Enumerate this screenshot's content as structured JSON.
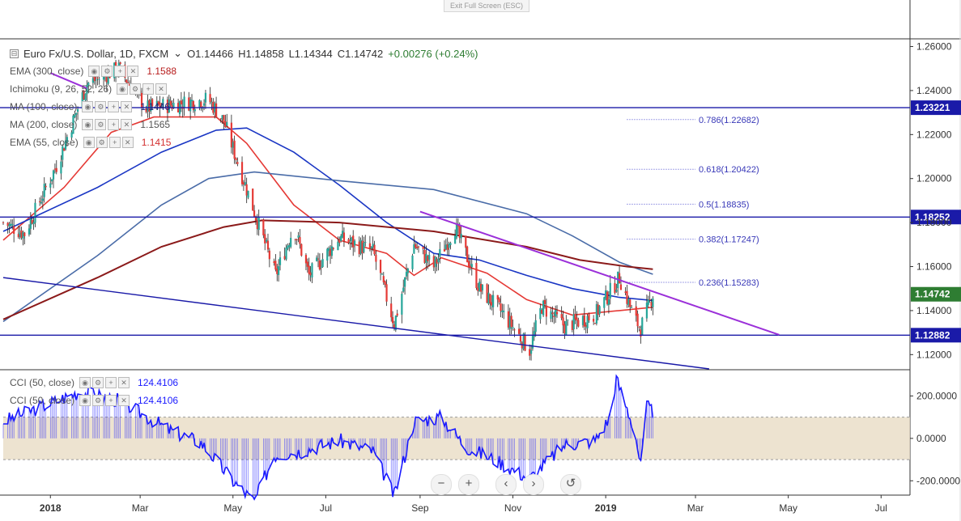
{
  "ui": {
    "exit_label": "Exit Full Screen (ESC)",
    "collapse_glyph": "⊟",
    "controls": {
      "zoom_out": "−",
      "zoom_in": "+",
      "prev": "‹",
      "next": "›",
      "reset": "↺"
    }
  },
  "header": {
    "symbol": "Euro Fx/U.S. Dollar, 1D, FXCM",
    "open": "O1.14466",
    "high": "H1.14858",
    "low": "L1.14344",
    "close": "C1.14742",
    "change": "+0.00276 (+0.24%)"
  },
  "indicators": [
    {
      "label": "EMA (300, close)",
      "value": "1.1588",
      "color": "#b71c1c"
    },
    {
      "label": "Ichimoku (9, 26, 52, 26)",
      "value": "",
      "color": "#555555"
    },
    {
      "label": "MA (100, close)",
      "value": "1.1446",
      "color": "#1a237e"
    },
    {
      "label": "MA (200, close)",
      "value": "1.1565",
      "color": "#555555"
    },
    {
      "label": "EMA (55, close)",
      "value": "1.1415",
      "color": "#d32f2f"
    }
  ],
  "cci_legend": [
    {
      "label": "CCI (50, close)",
      "value": "124.4106"
    },
    {
      "label": "CCI (50, close)",
      "value": "124.4106"
    }
  ],
  "colors": {
    "up": "#26a69a",
    "down": "#e53935",
    "cci": "#1a1aff",
    "ema55": "#e53935",
    "ma100": "#1a36c4",
    "ma200": "#4a6ca8",
    "ema300": "#8b1a1a",
    "trend_purple": "#9b30d9",
    "hline": "#1a1aa8",
    "price_tag": "#1a1aa8",
    "last_price_tag": "#2e7d32",
    "cci_band": "#e8dcc4"
  },
  "chart_data": {
    "type": "candlestick",
    "series_name": "Euro Fx/U.S. Dollar",
    "timeframe": "1D",
    "x_ticks": [
      "2018",
      "Mar",
      "May",
      "Jul",
      "Sep",
      "Nov",
      "2019",
      "Mar",
      "May",
      "Jul"
    ],
    "x_range": [
      "2017-12-01",
      "2019-07-20"
    ],
    "ylim": [
      1.1135,
      1.2635
    ],
    "y_ticks": [
      "1.26000",
      "1.24000",
      "1.22000",
      "1.20000",
      "1.18000",
      "1.16000",
      "1.14000",
      "1.12000"
    ],
    "last_price": "1.14742",
    "ohlc_anchors": [
      [
        "2017-12-01",
        1.18
      ],
      [
        "2017-12-15",
        1.175
      ],
      [
        "2018-01-05",
        1.206
      ],
      [
        "2018-01-25",
        1.243
      ],
      [
        "2018-02-15",
        1.25
      ],
      [
        "2018-03-05",
        1.232
      ],
      [
        "2018-04-15",
        1.236
      ],
      [
        "2018-04-25",
        1.226
      ],
      [
        "2018-05-15",
        1.185
      ],
      [
        "2018-05-29",
        1.156
      ],
      [
        "2018-06-10",
        1.178
      ],
      [
        "2018-06-20",
        1.156
      ],
      [
        "2018-07-10",
        1.173
      ],
      [
        "2018-08-01",
        1.167
      ],
      [
        "2018-08-15",
        1.134
      ],
      [
        "2018-08-28",
        1.17
      ],
      [
        "2018-09-10",
        1.16
      ],
      [
        "2018-09-24",
        1.178
      ],
      [
        "2018-10-10",
        1.15
      ],
      [
        "2018-10-25",
        1.139
      ],
      [
        "2018-11-12",
        1.122
      ],
      [
        "2018-11-20",
        1.142
      ],
      [
        "2018-12-05",
        1.133
      ],
      [
        "2018-12-25",
        1.138
      ],
      [
        "2019-01-10",
        1.155
      ],
      [
        "2019-01-20",
        1.136
      ],
      [
        "2019-01-24",
        1.132
      ],
      [
        "2019-02-01",
        1.1474
      ]
    ],
    "moving_averages": [
      {
        "name": "EMA (55, close)",
        "points": [
          [
            "2017-12-01",
            1.172
          ],
          [
            "2018-01-10",
            1.196
          ],
          [
            "2018-02-10",
            1.221
          ],
          [
            "2018-03-10",
            1.228
          ],
          [
            "2018-04-20",
            1.228
          ],
          [
            "2018-05-10",
            1.216
          ],
          [
            "2018-06-10",
            1.188
          ],
          [
            "2018-07-10",
            1.172
          ],
          [
            "2018-08-10",
            1.166
          ],
          [
            "2018-08-28",
            1.156
          ],
          [
            "2018-09-15",
            1.164
          ],
          [
            "2018-10-15",
            1.157
          ],
          [
            "2018-11-10",
            1.145
          ],
          [
            "2018-12-10",
            1.138
          ],
          [
            "2019-01-10",
            1.14
          ],
          [
            "2019-02-01",
            1.1415
          ]
        ]
      },
      {
        "name": "MA (100, close)",
        "points": [
          [
            "2017-12-01",
            1.176
          ],
          [
            "2018-02-01",
            1.196
          ],
          [
            "2018-03-15",
            1.212
          ],
          [
            "2018-04-20",
            1.222
          ],
          [
            "2018-05-10",
            1.223
          ],
          [
            "2018-06-10",
            1.212
          ],
          [
            "2018-07-10",
            1.197
          ],
          [
            "2018-08-10",
            1.18
          ],
          [
            "2018-09-10",
            1.166
          ],
          [
            "2018-10-10",
            1.163
          ],
          [
            "2018-11-10",
            1.156
          ],
          [
            "2018-12-10",
            1.15
          ],
          [
            "2019-01-10",
            1.146
          ],
          [
            "2019-02-01",
            1.1446
          ]
        ]
      },
      {
        "name": "MA (200, close)",
        "points": [
          [
            "2017-12-01",
            1.135
          ],
          [
            "2018-02-01",
            1.165
          ],
          [
            "2018-03-15",
            1.188
          ],
          [
            "2018-04-15",
            1.2
          ],
          [
            "2018-05-15",
            1.203
          ],
          [
            "2018-07-10",
            1.199
          ],
          [
            "2018-09-10",
            1.195
          ],
          [
            "2018-11-10",
            1.184
          ],
          [
            "2018-12-10",
            1.174
          ],
          [
            "2019-01-10",
            1.162
          ],
          [
            "2019-02-01",
            1.1565
          ]
        ]
      },
      {
        "name": "EMA (300, close)",
        "points": [
          [
            "2017-12-01",
            1.136
          ],
          [
            "2018-02-01",
            1.155
          ],
          [
            "2018-03-15",
            1.169
          ],
          [
            "2018-04-25",
            1.178
          ],
          [
            "2018-05-20",
            1.181
          ],
          [
            "2018-07-10",
            1.18
          ],
          [
            "2018-09-10",
            1.176
          ],
          [
            "2018-11-10",
            1.169
          ],
          [
            "2018-12-15",
            1.163
          ],
          [
            "2019-01-15",
            1.16
          ],
          [
            "2019-02-01",
            1.1588
          ]
        ]
      }
    ],
    "horizontal_levels": [
      1.23221,
      1.18252,
      1.12882
    ],
    "price_tags": [
      "1.23221",
      "1.18252",
      "1.12882"
    ],
    "trendlines": [
      {
        "name": "channel",
        "from": [
          "2017-12-01",
          1.155
        ],
        "to": [
          "2019-03-10",
          1.1135
        ]
      },
      {
        "name": "downtrend",
        "from": [
          "2018-09-01",
          1.185
        ],
        "to": [
          "2019-04-25",
          1.129
        ]
      },
      {
        "name": "top",
        "from": [
          "2018-01-01",
          1.248
        ],
        "to": [
          "2018-01-25",
          1.241
        ]
      }
    ],
    "fibonacci": {
      "from_date": "2019-01-15",
      "to_date": "2019-03-01",
      "levels": [
        {
          "price": 1.22682,
          "label": "0.786(1.22682)"
        },
        {
          "price": 1.20422,
          "label": "0.618(1.20422)"
        },
        {
          "price": 1.18835,
          "label": "0.5(1.18835)"
        },
        {
          "price": 1.17247,
          "label": "0.382(1.17247)"
        },
        {
          "price": 1.15283,
          "label": "0.236(1.15283)"
        }
      ]
    },
    "cci": {
      "name": "CCI (50, close)",
      "ylim": [
        -260,
        320
      ],
      "band": [
        -100,
        100
      ],
      "y_ticks": [
        "200.0000",
        "0.0000",
        "-200.0000"
      ],
      "last_value": 124.4106,
      "anchors": [
        [
          "2017-12-01",
          80
        ],
        [
          "2018-01-20",
          220
        ],
        [
          "2018-02-15",
          180
        ],
        [
          "2018-03-20",
          40
        ],
        [
          "2018-04-10",
          -20
        ],
        [
          "2018-05-01",
          -200
        ],
        [
          "2018-05-15",
          -300
        ],
        [
          "2018-05-28",
          -80
        ],
        [
          "2018-06-15",
          -60
        ],
        [
          "2018-07-10",
          -10
        ],
        [
          "2018-08-01",
          -60
        ],
        [
          "2018-08-15",
          -270
        ],
        [
          "2018-08-28",
          80
        ],
        [
          "2018-09-15",
          100
        ],
        [
          "2018-10-01",
          -40
        ],
        [
          "2018-10-20",
          -100
        ],
        [
          "2018-11-12",
          -190
        ],
        [
          "2018-12-05",
          -30
        ],
        [
          "2018-12-25",
          -10
        ],
        [
          "2019-01-03",
          90
        ],
        [
          "2019-01-08",
          280
        ],
        [
          "2019-01-20",
          40
        ],
        [
          "2019-01-24",
          -130
        ],
        [
          "2019-01-28",
          150
        ],
        [
          "2019-02-01",
          124
        ]
      ]
    }
  }
}
